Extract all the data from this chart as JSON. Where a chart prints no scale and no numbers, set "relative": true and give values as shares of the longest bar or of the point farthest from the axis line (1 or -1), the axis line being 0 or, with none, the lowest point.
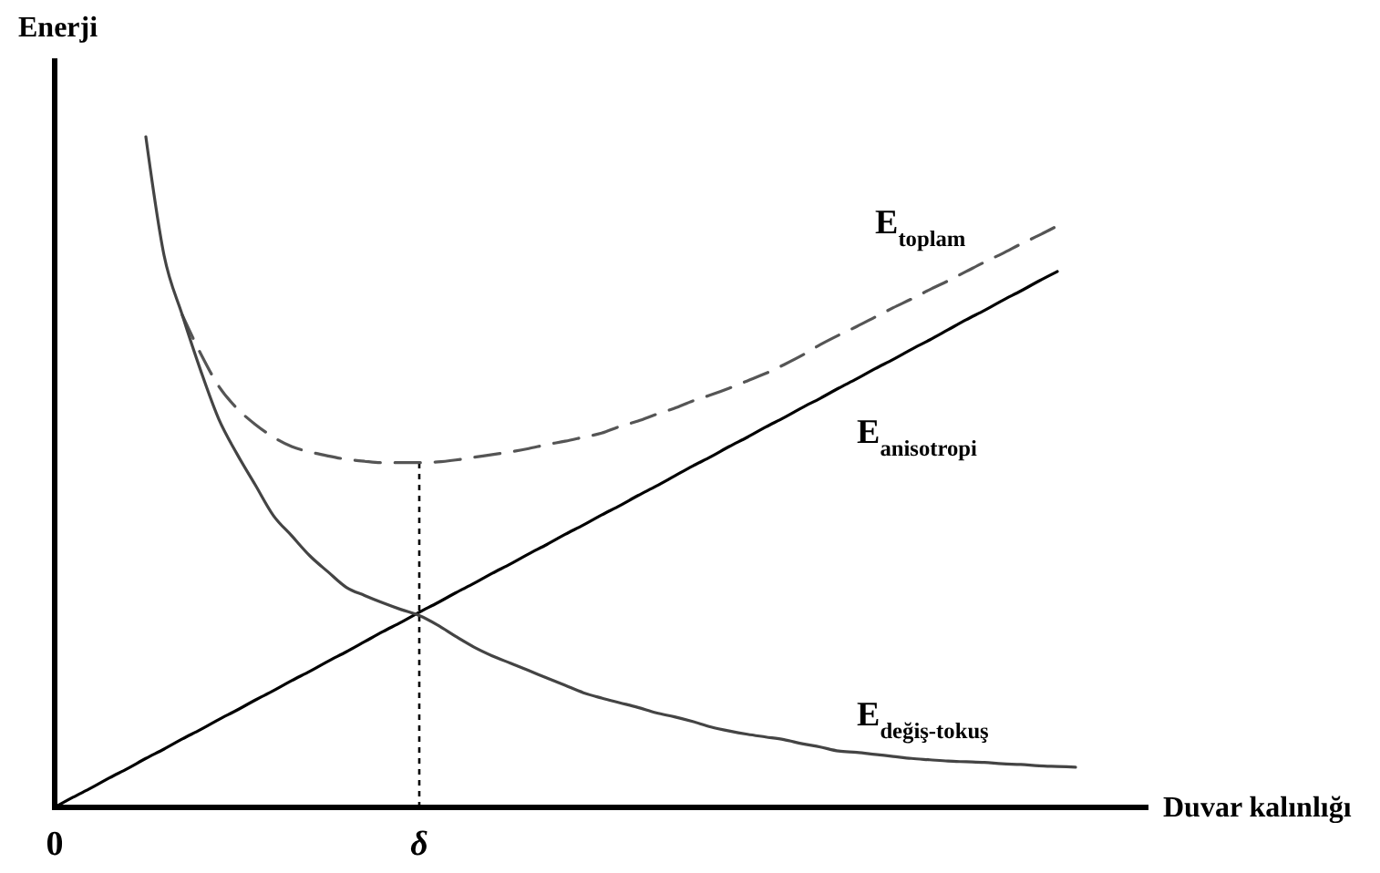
{
  "chart_data": {
    "type": "line",
    "relative": true,
    "xlabel": "Duvar kalınlığı",
    "ylabel": "Enerji",
    "categories": [
      "0",
      null,
      null,
      null,
      null,
      null,
      null,
      null,
      null,
      null,
      null,
      null,
      null,
      null,
      null,
      null,
      null,
      null,
      null,
      null,
      "δ",
      null,
      null,
      null,
      null,
      null,
      null,
      null,
      null,
      null,
      null,
      null,
      null,
      null,
      null,
      null,
      null,
      null,
      null,
      null,
      null,
      null,
      null,
      null,
      null,
      null,
      null,
      null,
      null,
      null,
      null,
      null,
      null,
      null,
      null,
      null,
      null
    ],
    "ref_lines": [
      {
        "axis": "x",
        "value": "δ",
        "line_style": "dotted",
        "color": "#000000"
      }
    ],
    "series": [
      {
        "name": "E$_{toplam}$",
        "color": "#555555",
        "line_style": "dashed",
        "values": [
          null,
          null,
          null,
          null,
          null,
          null,
          null,
          0.734,
          0.677,
          0.628,
          0.595,
          0.571,
          0.552,
          0.538,
          0.53,
          0.524,
          0.519,
          0.516,
          0.514,
          0.514,
          0.514,
          0.515,
          0.518,
          0.522,
          0.526,
          0.53,
          0.535,
          0.541,
          0.546,
          0.552,
          0.558,
          0.568,
          0.576,
          0.586,
          0.595,
          0.606,
          0.615,
          0.625,
          0.636,
          0.647,
          0.66,
          0.674,
          0.69,
          0.704,
          0.717,
          0.731,
          0.745,
          0.758,
          0.772,
          0.785,
          0.799,
          0.813,
          0.826,
          0.84,
          0.853,
          0.867,
          null
        ]
      },
      {
        "name": "E$_{anisotropi}$",
        "color": "#000000",
        "line_style": "solid",
        "values": [
          0,
          0.015,
          0.029,
          0.044,
          0.058,
          0.073,
          0.087,
          0.102,
          0.116,
          0.131,
          0.145,
          0.16,
          0.174,
          0.189,
          0.203,
          0.218,
          0.232,
          0.247,
          0.262,
          0.276,
          0.291,
          0.305,
          0.32,
          0.334,
          0.349,
          0.363,
          0.378,
          0.392,
          0.407,
          0.421,
          0.436,
          0.45,
          0.465,
          0.479,
          0.494,
          0.509,
          0.523,
          0.538,
          0.552,
          0.567,
          0.581,
          0.596,
          0.61,
          0.625,
          0.639,
          0.654,
          0.668,
          0.683,
          0.697,
          0.712,
          0.727,
          0.741,
          0.756,
          0.77,
          0.785,
          0.799,
          null
        ]
      },
      {
        "name": "E$_{değiş-tokuş}$",
        "color": "#444444",
        "line_style": "solid",
        "values": [
          null,
          null,
          null,
          null,
          null,
          1.0,
          0.823,
          0.734,
          0.652,
          0.579,
          0.527,
          0.481,
          0.435,
          0.405,
          0.375,
          0.351,
          0.328,
          0.316,
          0.305,
          0.295,
          0.286,
          0.272,
          0.255,
          0.239,
          0.226,
          0.215,
          0.204,
          0.193,
          0.182,
          0.171,
          0.163,
          0.156,
          0.149,
          0.141,
          0.135,
          0.128,
          0.12,
          0.114,
          0.109,
          0.105,
          0.101,
          0.095,
          0.09,
          0.084,
          0.082,
          0.079,
          0.076,
          0.073,
          0.071,
          0.069,
          0.068,
          0.067,
          0.065,
          0.064,
          0.062,
          0.061,
          0.06
        ]
      }
    ]
  }
}
